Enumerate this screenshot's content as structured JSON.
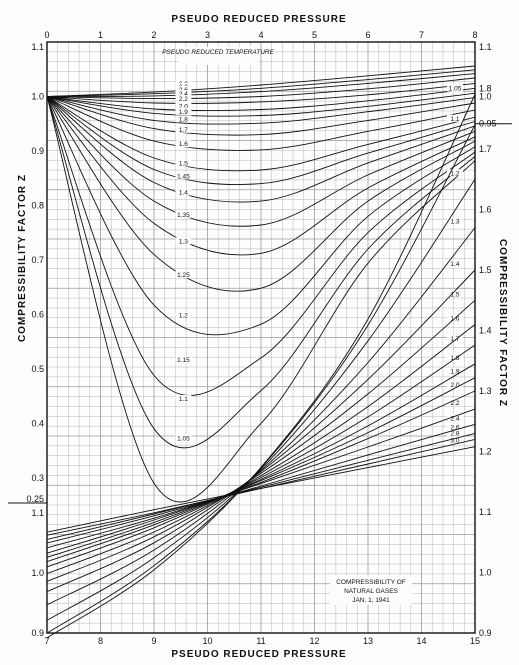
{
  "chart_data": {
    "type": "line",
    "title": "",
    "top_axis": {
      "label": "PSEUDO REDUCED PRESSURE",
      "range": [
        0,
        8
      ],
      "ticks": [
        "0",
        "1",
        "2",
        "3",
        "4",
        "5",
        "6",
        "7",
        "8"
      ]
    },
    "bottom_axis": {
      "label": "PSEUDO REDUCED PRESSURE",
      "range": [
        7,
        15
      ],
      "ticks": [
        "7",
        "8",
        "9",
        "10",
        "11",
        "12",
        "13",
        "14",
        "15"
      ]
    },
    "left_axis": {
      "label": "COMPRESSIBILITY FACTOR Z",
      "upper_range": [
        0.25,
        1.1
      ],
      "upper_ticks": [
        "1.1",
        "1.0",
        "0.9",
        "0.8",
        "0.7",
        "0.6",
        "0.5",
        "0.4",
        "0.3",
        "0.25"
      ],
      "lower_range": [
        0.9,
        1.1
      ],
      "lower_ticks": [
        "1.1",
        "1.0",
        "0.9"
      ]
    },
    "right_axis": {
      "label": "COMPRESSIBILITY FACTOR Z",
      "upper_ticks": [
        "1.1",
        "1.0",
        "0.95"
      ],
      "lower_range": [
        0.9,
        1.8
      ],
      "lower_ticks": [
        "1.8",
        "1.7",
        "1.6",
        "1.5",
        "1.4",
        "1.3",
        "1.2",
        "1.1",
        "1.0",
        "0.9"
      ]
    },
    "curve_family_label": "PSEUDO REDUCED TEMPERATURE",
    "legend_box": [
      "COMPRESSIBILITY OF",
      "NATURAL GASES",
      "JAN. 1, 1941"
    ],
    "upper_series": [
      {
        "name": "3.0",
        "x": [
          0,
          2,
          4,
          6,
          8
        ],
        "y": [
          1.0,
          1.008,
          1.021,
          1.038,
          1.056
        ]
      },
      {
        "name": "2.8",
        "x": [
          0,
          2,
          4,
          6,
          8
        ],
        "y": [
          1.0,
          1.005,
          1.015,
          1.031,
          1.049
        ]
      },
      {
        "name": "2.6",
        "x": [
          0,
          2,
          4,
          6,
          8
        ],
        "y": [
          1.0,
          1.001,
          1.009,
          1.024,
          1.042
        ]
      },
      {
        "name": "2.4",
        "x": [
          0,
          2,
          4,
          6,
          8
        ],
        "y": [
          1.0,
          0.996,
          1.0,
          1.014,
          1.034
        ]
      },
      {
        "name": "2.2",
        "x": [
          0,
          2,
          4,
          6,
          8
        ],
        "y": [
          1.0,
          0.988,
          0.99,
          1.003,
          1.024
        ]
      },
      {
        "name": "2.0",
        "x": [
          0,
          2,
          4,
          6,
          8
        ],
        "y": [
          1.0,
          0.977,
          0.976,
          0.992,
          1.015
        ]
      },
      {
        "name": "1.9",
        "x": [
          0,
          2,
          4,
          6,
          8
        ],
        "y": [
          1.0,
          0.969,
          0.965,
          0.982,
          1.006
        ]
      },
      {
        "name": "1.8",
        "x": [
          0,
          2,
          4,
          6,
          8
        ],
        "y": [
          1.0,
          0.956,
          0.951,
          0.972,
          0.998
        ]
      },
      {
        "name": "1.7",
        "x": [
          0,
          2,
          4,
          6,
          8
        ],
        "y": [
          1.0,
          0.941,
          0.93,
          0.956,
          0.988
        ]
      },
      {
        "name": "1.6",
        "x": [
          0,
          2,
          4,
          6,
          8
        ],
        "y": [
          1.0,
          0.918,
          0.902,
          0.936,
          0.975
        ]
      },
      {
        "name": "1.5",
        "x": [
          0,
          2,
          4,
          6,
          8
        ],
        "y": [
          1.0,
          0.887,
          0.865,
          0.912,
          0.962
        ]
      },
      {
        "name": "1.45",
        "x": [
          0,
          2,
          4,
          6,
          8
        ],
        "y": [
          1.0,
          0.866,
          0.84,
          0.896,
          0.954
        ]
      },
      {
        "name": "1.4",
        "x": [
          0,
          2,
          4,
          6,
          8
        ],
        "y": [
          1.0,
          0.842,
          0.808,
          0.878,
          0.946
        ]
      },
      {
        "name": "1.35",
        "x": [
          0,
          2,
          4,
          6,
          8
        ],
        "y": [
          1.0,
          0.808,
          0.764,
          0.856,
          0.936
        ]
      },
      {
        "name": "1.3",
        "x": [
          0,
          2,
          4,
          6,
          8
        ],
        "y": [
          1.0,
          0.767,
          0.712,
          0.832,
          0.926
        ]
      },
      {
        "name": "1.25",
        "x": [
          0,
          2,
          4,
          6,
          8
        ],
        "y": [
          1.0,
          0.71,
          0.648,
          0.808,
          0.918
        ]
      },
      {
        "name": "1.2",
        "x": [
          0,
          2,
          4,
          6,
          8
        ],
        "y": [
          1.0,
          0.617,
          0.582,
          0.78,
          0.908
        ]
      },
      {
        "name": "1.15",
        "x": [
          0,
          2,
          4,
          6,
          8
        ],
        "y": [
          1.0,
          0.488,
          0.52,
          0.75,
          0.898
        ]
      },
      {
        "name": "1.1",
        "x": [
          0,
          2,
          4,
          6,
          8
        ],
        "y": [
          1.0,
          0.39,
          0.46,
          0.72,
          0.89
        ]
      },
      {
        "name": "1.05",
        "x": [
          0,
          2,
          4,
          6,
          8
        ],
        "y": [
          1.0,
          0.29,
          0.4,
          0.694,
          0.882
        ]
      }
    ],
    "lower_series": [
      {
        "name": "3.0",
        "x": [
          7,
          9,
          11,
          13,
          15
        ],
        "y": [
          1.068,
          1.105,
          1.14,
          1.174,
          1.208
        ]
      },
      {
        "name": "2.8",
        "x": [
          7,
          9,
          11,
          13,
          15
        ],
        "y": [
          1.063,
          1.1,
          1.14,
          1.18,
          1.22
        ]
      },
      {
        "name": "2.6",
        "x": [
          7,
          9,
          11,
          13,
          15
        ],
        "y": [
          1.056,
          1.098,
          1.142,
          1.186,
          1.23
        ]
      },
      {
        "name": "2.4",
        "x": [
          7,
          9,
          11,
          13,
          15
        ],
        "y": [
          1.05,
          1.095,
          1.144,
          1.195,
          1.245
        ]
      },
      {
        "name": "2.2",
        "x": [
          7,
          9,
          11,
          13,
          15
        ],
        "y": [
          1.042,
          1.091,
          1.148,
          1.208,
          1.27
        ]
      },
      {
        "name": "2.0",
        "x": [
          7,
          9,
          11,
          13,
          15
        ],
        "y": [
          1.033,
          1.088,
          1.15,
          1.222,
          1.3
        ]
      },
      {
        "name": "1.9",
        "x": [
          7,
          9,
          11,
          13,
          15
        ],
        "y": [
          1.026,
          1.084,
          1.153,
          1.232,
          1.322
        ]
      },
      {
        "name": "1.8",
        "x": [
          7,
          9,
          11,
          13,
          15
        ],
        "y": [
          1.019,
          1.08,
          1.155,
          1.243,
          1.345
        ]
      },
      {
        "name": "1.7",
        "x": [
          7,
          9,
          11,
          13,
          15
        ],
        "y": [
          1.01,
          1.075,
          1.158,
          1.258,
          1.376
        ]
      },
      {
        "name": "1.6",
        "x": [
          7,
          9,
          11,
          13,
          15
        ],
        "y": [
          0.999,
          1.068,
          1.161,
          1.275,
          1.41
        ]
      },
      {
        "name": "1.5",
        "x": [
          7,
          9,
          11,
          13,
          15
        ],
        "y": [
          0.986,
          1.06,
          1.165,
          1.296,
          1.45
        ]
      },
      {
        "name": "1.4",
        "x": [
          7,
          9,
          11,
          13,
          15
        ],
        "y": [
          0.969,
          1.05,
          1.168,
          1.32,
          1.5
        ]
      },
      {
        "name": "1.3",
        "x": [
          7,
          9,
          11,
          13,
          15
        ],
        "y": [
          0.947,
          1.038,
          1.17,
          1.348,
          1.57
        ]
      },
      {
        "name": "1.2",
        "x": [
          7,
          9,
          11,
          13,
          15
        ],
        "y": [
          0.921,
          1.025,
          1.172,
          1.384,
          1.65
        ]
      },
      {
        "name": "1.1",
        "x": [
          7,
          9,
          11,
          13,
          15
        ],
        "y": [
          0.9,
          1.012,
          1.174,
          1.41,
          1.74
        ]
      },
      {
        "name": "1.05",
        "x": [
          7,
          9,
          11,
          13,
          15
        ],
        "y": [
          0.892,
          1.005,
          1.175,
          1.42,
          1.79
        ]
      }
    ]
  }
}
